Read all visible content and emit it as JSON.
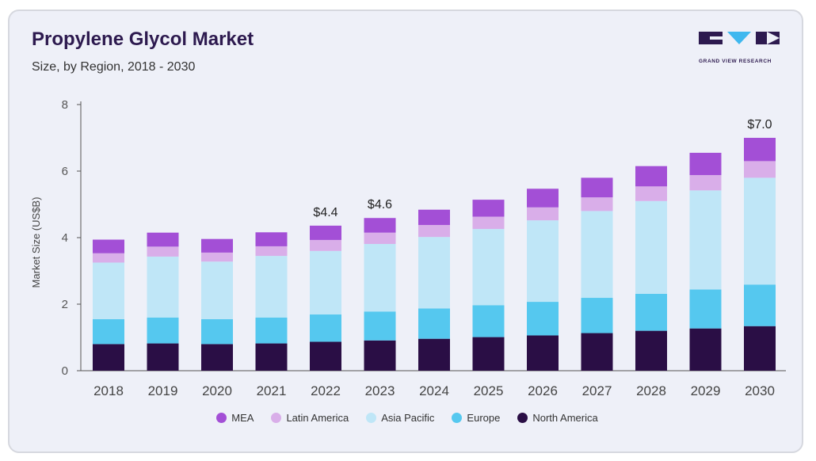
{
  "header": {
    "title": "Propylene Glycol Market",
    "subtitle": "Size, by Region, 2018 - 2030",
    "logo_text": "GRAND VIEW RESEARCH"
  },
  "colors": {
    "North America": "#2a0e45",
    "Europe": "#55c8ef",
    "Asia Pacific": "#bfe6f7",
    "Latin America": "#d9aee9",
    "MEA": "#a34fd6",
    "logo_purple": "#2d1a4f",
    "logo_blue": "#3fb8ef"
  },
  "legend": [
    {
      "name": "MEA",
      "color": "#a34fd6"
    },
    {
      "name": "Latin America",
      "color": "#d9aee9"
    },
    {
      "name": "Asia Pacific",
      "color": "#bfe6f7"
    },
    {
      "name": "Europe",
      "color": "#55c8ef"
    },
    {
      "name": "North America",
      "color": "#2a0e45"
    }
  ],
  "chart_data": {
    "type": "bar",
    "stacked": true,
    "ylabel": "Market Size (US$B)",
    "ylim": [
      0,
      8
    ],
    "yticks": [
      0,
      2,
      4,
      6,
      8
    ],
    "grid": false,
    "legend_position": "bottom",
    "categories": [
      "2018",
      "2019",
      "2020",
      "2021",
      "2022",
      "2023",
      "2024",
      "2025",
      "2026",
      "2027",
      "2028",
      "2029",
      "2030"
    ],
    "series": [
      {
        "name": "North America",
        "values": [
          0.8,
          0.82,
          0.8,
          0.82,
          0.87,
          0.91,
          0.96,
          1.01,
          1.06,
          1.13,
          1.2,
          1.27,
          1.34
        ]
      },
      {
        "name": "Europe",
        "values": [
          0.75,
          0.78,
          0.75,
          0.78,
          0.82,
          0.87,
          0.91,
          0.96,
          1.01,
          1.06,
          1.11,
          1.17,
          1.25
        ]
      },
      {
        "name": "Asia Pacific",
        "values": [
          1.7,
          1.83,
          1.73,
          1.85,
          1.91,
          2.03,
          2.15,
          2.29,
          2.45,
          2.61,
          2.79,
          2.98,
          3.21
        ]
      },
      {
        "name": "Latin America",
        "values": [
          0.28,
          0.3,
          0.27,
          0.29,
          0.33,
          0.34,
          0.36,
          0.37,
          0.39,
          0.41,
          0.44,
          0.46,
          0.5
        ]
      },
      {
        "name": "MEA",
        "values": [
          0.41,
          0.42,
          0.41,
          0.42,
          0.43,
          0.44,
          0.46,
          0.51,
          0.56,
          0.59,
          0.61,
          0.67,
          0.7
        ]
      }
    ],
    "annotations": [
      {
        "category": "2022",
        "label": "$4.4"
      },
      {
        "category": "2023",
        "label": "$4.6"
      },
      {
        "category": "2030",
        "label": "$7.0"
      }
    ]
  }
}
